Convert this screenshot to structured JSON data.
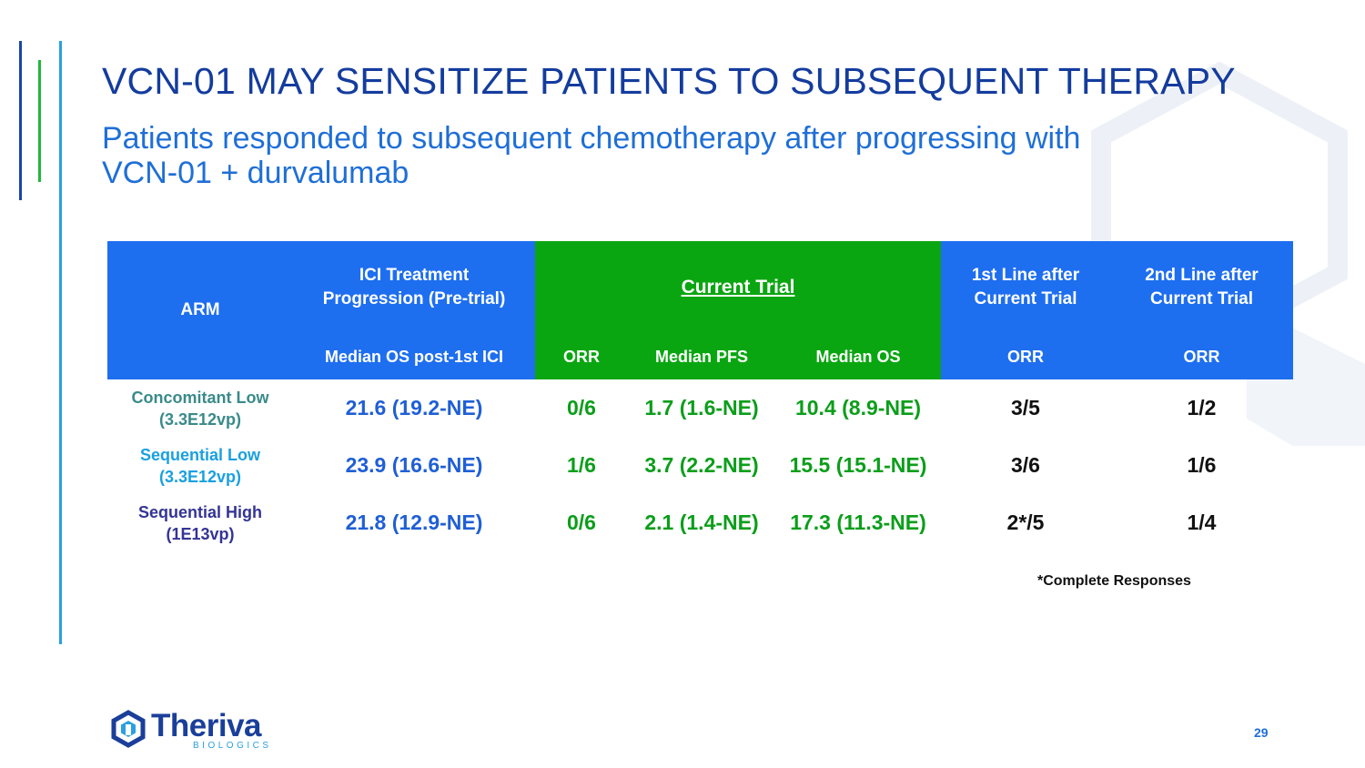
{
  "slide": {
    "title": "VCN-01 MAY SENSITIZE PATIENTS TO SUBSEQUENT THERAPY",
    "subtitle_line1": "Patients responded to subsequent chemotherapy after progressing with",
    "subtitle_line2": "VCN-01 + durvalumab",
    "page_number": "29"
  },
  "table": {
    "header": {
      "arm": "ARM",
      "ici_line1": "ICI Treatment",
      "ici_line2": "Progression (Pre-trial)",
      "current_trial": "Current Trial",
      "first_line_1": "1st Line after",
      "first_line_2": "Current Trial",
      "second_line_1": "2nd Line after",
      "second_line_2": "Current Trial"
    },
    "subheader": {
      "median_os_post_ici": "Median OS post-1st ICI",
      "orr": "ORR",
      "median_pfs": "Median PFS",
      "median_os": "Median OS",
      "first_orr": "ORR",
      "second_orr": "ORR"
    },
    "rows": [
      {
        "arm_line1": "Concomitant Low",
        "arm_line2": "(3.3E12vp)",
        "median_os_post_ici": "21.6 (19.2-NE)",
        "orr": "0/6",
        "median_pfs": "1.7 (1.6-NE)",
        "median_os": "10.4 (8.9-NE)",
        "first_line_orr": "3/5",
        "second_line_orr": "1/2"
      },
      {
        "arm_line1": "Sequential Low",
        "arm_line2": "(3.3E12vp)",
        "median_os_post_ici": "23.9 (16.6-NE)",
        "orr": "1/6",
        "median_pfs": "3.7 (2.2-NE)",
        "median_os": "15.5 (15.1-NE)",
        "first_line_orr": "3/6",
        "second_line_orr": "1/6"
      },
      {
        "arm_line1": "Sequential High",
        "arm_line2": "(1E13vp)",
        "median_os_post_ici": "21.8 (12.9-NE)",
        "orr": "0/6",
        "median_pfs": "2.1 (1.4-NE)",
        "median_os": "17.3 (11.3-NE)",
        "first_line_orr": "2*/5",
        "second_line_orr": "1/4"
      }
    ],
    "footnote": "*Complete Responses"
  },
  "logo": {
    "name": "Theriva",
    "sub": "BIOLOGICS"
  },
  "colors": {
    "header_blue": "#1e6ef0",
    "header_green": "#0aa611",
    "title_navy": "#143c9e",
    "subtitle_blue": "#1f6fd6"
  }
}
